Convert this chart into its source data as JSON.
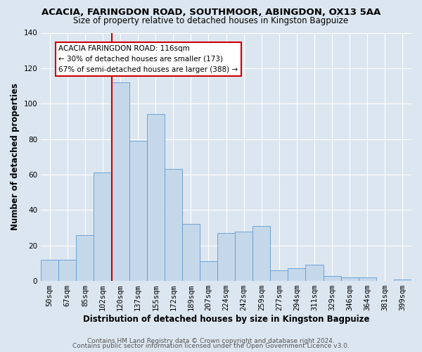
{
  "title1": "ACACIA, FARINGDON ROAD, SOUTHMOOR, ABINGDON, OX13 5AA",
  "title2": "Size of property relative to detached houses in Kingston Bagpuize",
  "xlabel": "Distribution of detached houses by size in Kingston Bagpuize",
  "ylabel": "Number of detached properties",
  "footer1": "Contains HM Land Registry data © Crown copyright and database right 2024.",
  "footer2": "Contains public sector information licensed under the Open Government Licence v3.0.",
  "bin_labels": [
    "50sqm",
    "67sqm",
    "85sqm",
    "102sqm",
    "120sqm",
    "137sqm",
    "155sqm",
    "172sqm",
    "189sqm",
    "207sqm",
    "224sqm",
    "242sqm",
    "259sqm",
    "277sqm",
    "294sqm",
    "311sqm",
    "329sqm",
    "346sqm",
    "364sqm",
    "381sqm",
    "399sqm"
  ],
  "bar_heights": [
    12,
    12,
    26,
    61,
    112,
    79,
    94,
    63,
    32,
    11,
    27,
    28,
    31,
    6,
    7,
    9,
    3,
    2,
    2,
    0,
    1
  ],
  "bar_color": "#c5d8ea",
  "bar_edge_color": "#5b9bd5",
  "vline_x": 3.5,
  "vline_color": "#cc0000",
  "annotation_title": "ACACIA FARINGDON ROAD: 116sqm",
  "annotation_line1": "← 30% of detached houses are smaller (173)",
  "annotation_line2": "67% of semi-detached houses are larger (388) →",
  "annotation_box_color": "#ffffff",
  "annotation_box_edge": "#cc0000",
  "ylim": [
    0,
    140
  ],
  "yticks": [
    0,
    20,
    40,
    60,
    80,
    100,
    120,
    140
  ],
  "background_color": "#dce6f0",
  "plot_background": "#dce6f0",
  "grid_color": "#ffffff",
  "title1_fontsize": 9.5,
  "title2_fontsize": 8.5,
  "xlabel_fontsize": 8.5,
  "ylabel_fontsize": 8.5,
  "tick_fontsize": 7.5,
  "ann_fontsize": 7.5,
  "footer_fontsize": 6.5
}
